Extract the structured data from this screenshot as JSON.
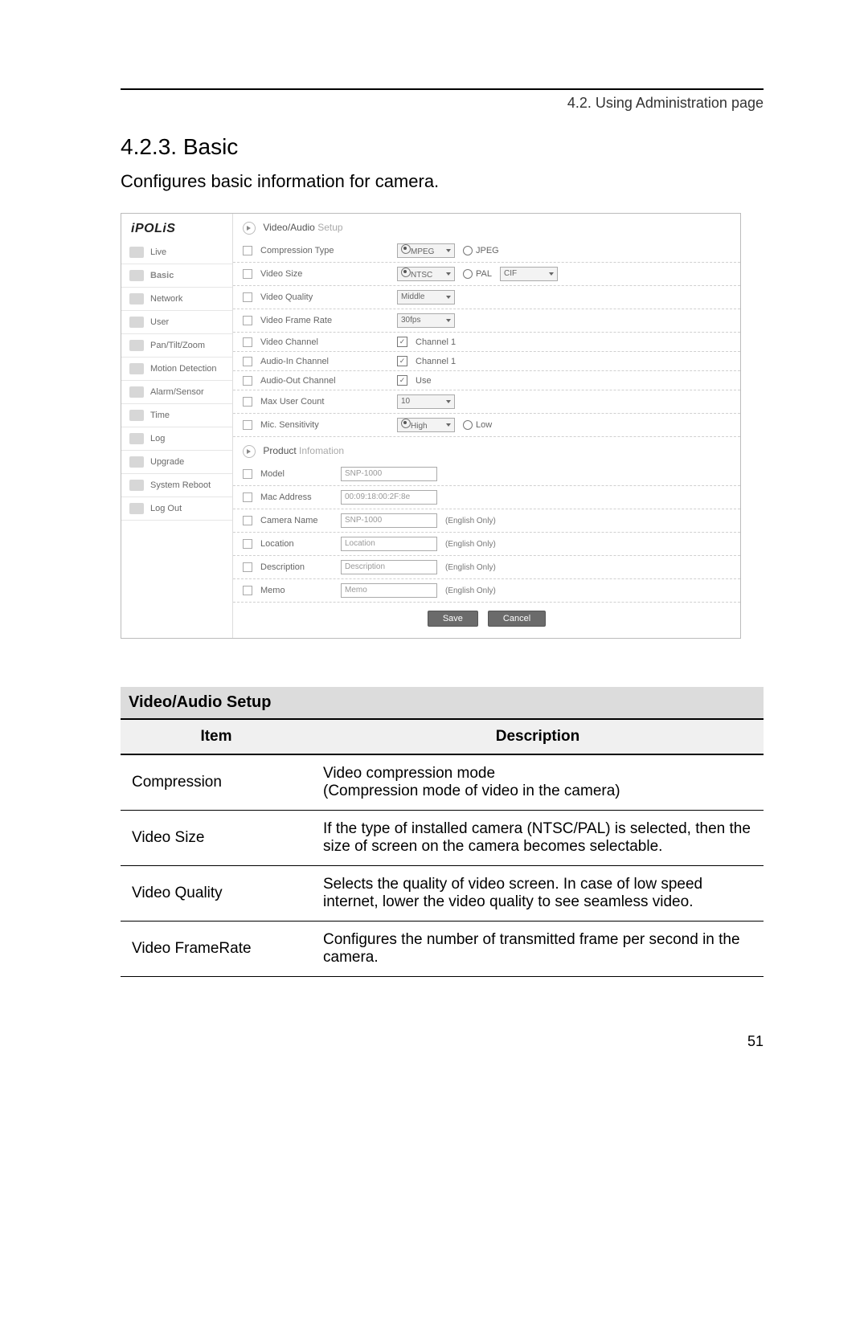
{
  "header": {
    "crumb": "4.2. Using Administration page"
  },
  "section": {
    "num_title": "4.2.3. Basic",
    "subtitle": "Configures basic information for camera."
  },
  "shot": {
    "brand": "iPOLiS",
    "nav": [
      {
        "label": "Live"
      },
      {
        "label": "Basic",
        "active": true
      },
      {
        "label": "Network"
      },
      {
        "label": "User"
      },
      {
        "label": "Pan/Tilt/Zoom"
      },
      {
        "label": "Motion Detection"
      },
      {
        "label": "Alarm/Sensor"
      },
      {
        "label": "Time"
      },
      {
        "label": "Log"
      },
      {
        "label": "Upgrade"
      },
      {
        "label": "System Reboot"
      },
      {
        "label": "Log Out"
      }
    ],
    "panel1": {
      "title_strong": "Video/Audio",
      "title_muted": "Setup"
    },
    "rows": {
      "compression": {
        "label": "Compression Type",
        "opt1": "MPEG",
        "opt2": "JPEG"
      },
      "videosize": {
        "label": "Video Size",
        "opt1": "NTSC",
        "opt2": "PAL",
        "select": "CIF"
      },
      "quality": {
        "label": "Video Quality",
        "select": "Middle"
      },
      "framerate": {
        "label": "Video Frame Rate",
        "select": "30fps"
      },
      "vch": {
        "label": "Video Channel",
        "chk": "Channel 1"
      },
      "ain": {
        "label": "Audio-In Channel",
        "chk": "Channel 1"
      },
      "aout": {
        "label": "Audio-Out Channel",
        "chk": "Use"
      },
      "maxuser": {
        "label": "Max User Count",
        "select": "10"
      },
      "mic": {
        "label": "Mic. Sensitivity",
        "opt1": "High",
        "opt2": "Low"
      }
    },
    "panel2": {
      "title_strong": "Product",
      "title_muted": "Infomation"
    },
    "info": {
      "model": {
        "label": "Model",
        "value": "SNP-1000"
      },
      "mac": {
        "label": "Mac Address",
        "value": "00:09:18:00:2F:8e"
      },
      "name": {
        "label": "Camera Name",
        "value": "SNP-1000",
        "hint": "(English Only)"
      },
      "loc": {
        "label": "Location",
        "value": "Location",
        "hint": "(English Only)"
      },
      "desc": {
        "label": "Description",
        "value": "Description",
        "hint": "(English Only)"
      },
      "memo": {
        "label": "Memo",
        "value": "Memo",
        "hint": "(English Only)"
      }
    },
    "buttons": {
      "save": "Save",
      "cancel": "Cancel"
    }
  },
  "docTable": {
    "block_title": "Video/Audio Setup",
    "head_item": "Item",
    "head_desc": "Description",
    "rows": [
      {
        "item": "Compression",
        "desc": "Video compression mode\n(Compression mode of video in the camera)"
      },
      {
        "item": "Video Size",
        "desc": "If the type of installed camera (NTSC/PAL) is selected, then the size of screen on the camera becomes selectable."
      },
      {
        "item": "Video Quality",
        "desc": "Selects the quality of video screen. In case of low speed internet, lower the video quality to see seamless video."
      },
      {
        "item": "Video FrameRate",
        "desc": "Configures the number of transmitted frame per second in the camera."
      }
    ]
  },
  "pageNumber": "51"
}
